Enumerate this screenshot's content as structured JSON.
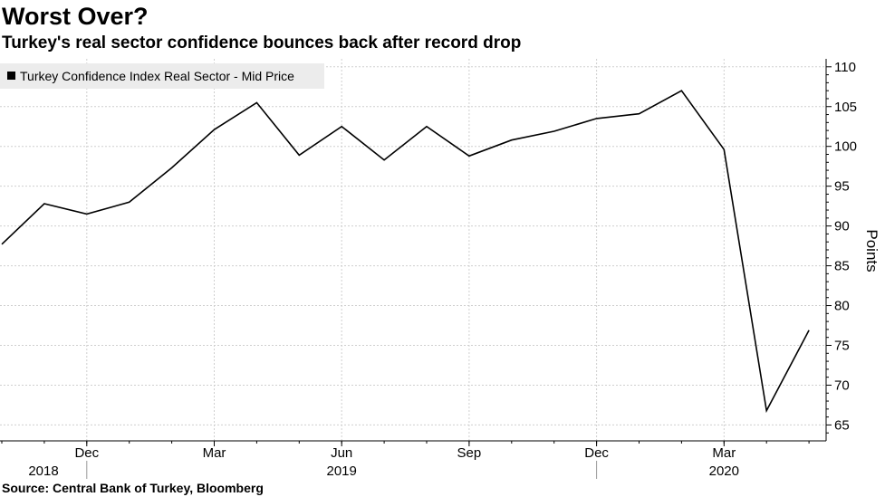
{
  "header": {
    "title": "Worst Over?",
    "subtitle": "Turkey's real sector confidence bounces back after record drop"
  },
  "footer": {
    "source": "Source: Central Bank of Turkey, Bloomberg"
  },
  "colors": {
    "line": "#000000",
    "grid": "#cfcfcf",
    "legend_bg": "#ececec"
  },
  "chart_data": {
    "type": "line",
    "legend": [
      "Turkey Confidence Index Real Sector - Mid Price"
    ],
    "legend_placement": "top-left",
    "ylabel": "Points",
    "ylim": [
      63,
      111
    ],
    "yticks": [
      65,
      70,
      75,
      80,
      85,
      90,
      95,
      100,
      105,
      110
    ],
    "y_axis_side": "right",
    "grid": true,
    "x": [
      "2018-10",
      "2018-11",
      "2018-12",
      "2019-01",
      "2019-02",
      "2019-03",
      "2019-04",
      "2019-05",
      "2019-06",
      "2019-07",
      "2019-08",
      "2019-09",
      "2019-10",
      "2019-11",
      "2019-12",
      "2020-01",
      "2020-02",
      "2020-03",
      "2020-04",
      "2020-05"
    ],
    "series": [
      {
        "name": "Turkey Confidence Index Real Sector - Mid Price",
        "values": [
          87.7,
          92.8,
          91.5,
          93.0,
          97.3,
          102.1,
          105.5,
          98.9,
          102.5,
          98.3,
          102.5,
          98.8,
          100.8,
          101.9,
          103.5,
          104.1,
          107.0,
          99.6,
          66.8,
          76.9
        ]
      }
    ],
    "xticks": [
      {
        "month": "2018-12",
        "label": "Dec"
      },
      {
        "month": "2019-03",
        "label": "Mar"
      },
      {
        "month": "2019-06",
        "label": "Jun"
      },
      {
        "month": "2019-09",
        "label": "Sep"
      },
      {
        "month": "2019-12",
        "label": "Dec"
      },
      {
        "month": "2020-03",
        "label": "Mar"
      }
    ],
    "year_labels": [
      {
        "label": "2018",
        "center_month": "2018-11"
      },
      {
        "label": "2019",
        "center_month": "2019-06"
      },
      {
        "label": "2020",
        "center_month": "2020-03"
      }
    ],
    "year_separators": [
      "2018-12",
      "2019-12"
    ]
  }
}
